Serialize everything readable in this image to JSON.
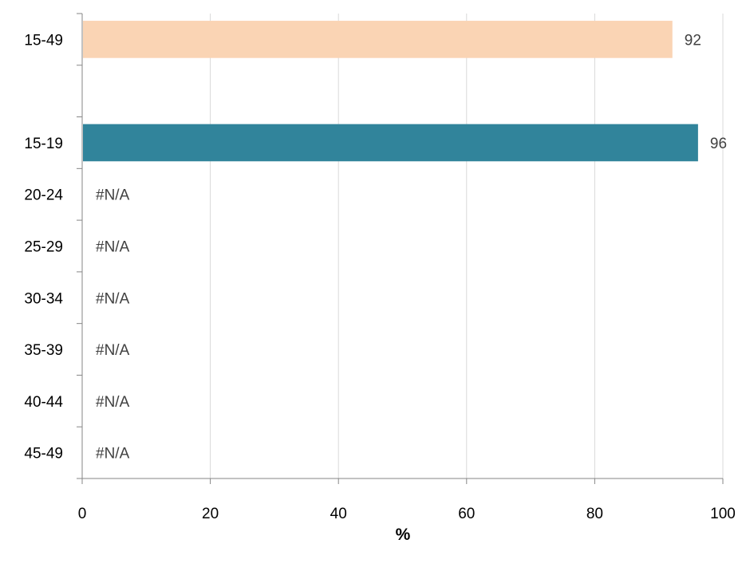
{
  "chart_data": {
    "type": "bar",
    "orientation": "horizontal",
    "categories": [
      "15-49",
      "",
      "15-19",
      "20-24",
      "25-29",
      "30-34",
      "35-39",
      "40-44",
      "45-49"
    ],
    "values": [
      92,
      null,
      96,
      null,
      null,
      null,
      null,
      null,
      null
    ],
    "data_labels": [
      "92",
      "",
      "96",
      "#N/A",
      "#N/A",
      "#N/A",
      "#N/A",
      "#N/A",
      "#N/A"
    ],
    "bar_colors": [
      "#fad4b4",
      null,
      "#31849b",
      null,
      null,
      null,
      null,
      null,
      null
    ],
    "xlabel": "%",
    "ylabel": "",
    "xlim": [
      0,
      100
    ],
    "xticks": [
      0,
      20,
      40,
      60,
      80,
      100
    ],
    "xtick_labels": [
      "0",
      "20",
      "40",
      "60",
      "80",
      "100"
    ],
    "grid": "vertical",
    "legend": "none"
  }
}
